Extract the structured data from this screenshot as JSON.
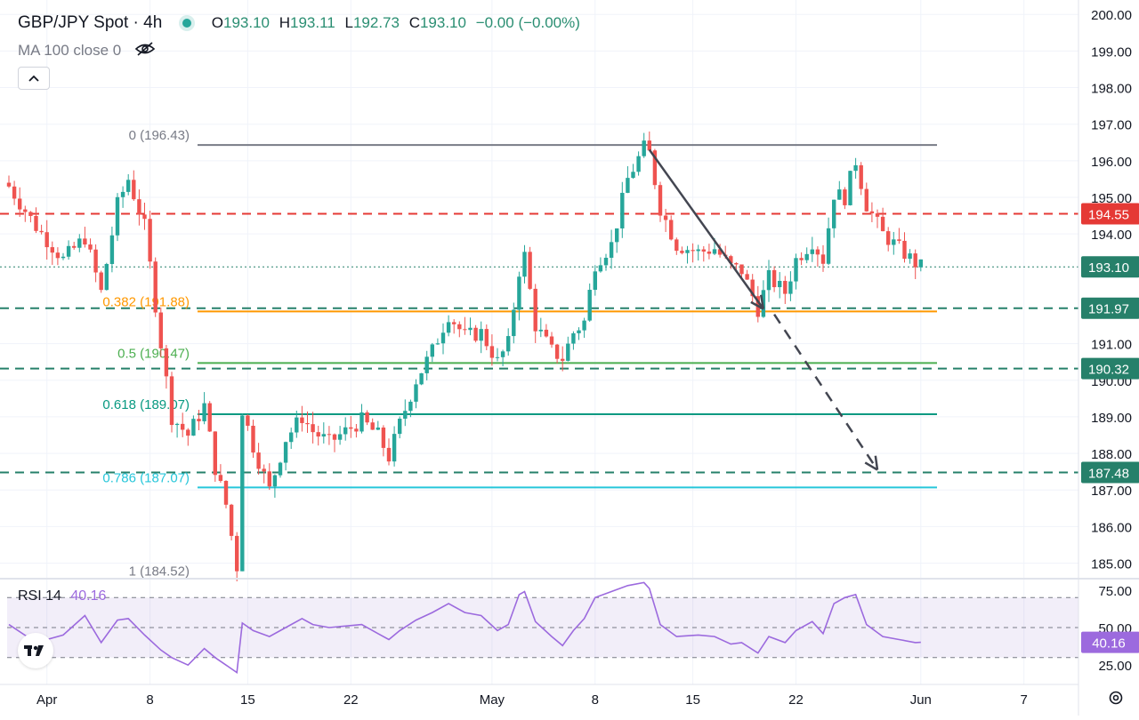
{
  "header": {
    "symbol": "GBP/JPY Spot · 4h",
    "open_label": "O",
    "open": "193.10",
    "high_label": "H",
    "high": "193.11",
    "low_label": "L",
    "low": "192.73",
    "close_label": "C",
    "close": "193.10",
    "change": "−0.00 (−0.00%)",
    "ma_label": "MA 100 close 0",
    "rsi_label": "RSI 14",
    "rsi_value": "40.16"
  },
  "icons": [
    "status-dot-icon",
    "eye-off-icon",
    "chevron-up-icon",
    "tradingview-logo-icon",
    "gear-icon"
  ],
  "colors": {
    "up": "#26a69a",
    "down": "#ef5350",
    "fib_0": "#787b86",
    "fib_382": "#ff9800",
    "fib_5": "#4caf50",
    "fib_618": "#089981",
    "fib_786": "#26c6da",
    "resistance": "#e53935",
    "support": "#26806a",
    "rsi": "#9c6ade"
  },
  "chart_data": {
    "type": "candlestick",
    "title": "GBP/JPY Spot · 4h",
    "ylim": [
      184.6,
      200.2
    ],
    "y_ticks": [
      "200.00",
      "199.00",
      "198.00",
      "197.00",
      "196.00",
      "195.00",
      "194.00",
      "191.00",
      "190.00",
      "189.00",
      "188.00",
      "187.00",
      "186.00",
      "185.00"
    ],
    "x_ticks": [
      "Apr",
      "8",
      "15",
      "22",
      "May",
      "8",
      "15",
      "22",
      "Jun",
      "7"
    ],
    "current_price": "193.10",
    "price_tags": [
      {
        "value": 194.55,
        "label": "194.55",
        "kind": "resistance"
      },
      {
        "value": 193.1,
        "label": "193.10",
        "kind": "current"
      },
      {
        "value": 191.97,
        "label": "191.97",
        "kind": "support"
      },
      {
        "value": 190.32,
        "label": "190.32",
        "kind": "support"
      },
      {
        "value": 187.48,
        "label": "187.48",
        "kind": "support"
      }
    ],
    "horizontal_levels": [
      {
        "value": 194.55,
        "style": "dashed",
        "kind": "resistance"
      },
      {
        "value": 191.97,
        "style": "dashed",
        "kind": "support"
      },
      {
        "value": 190.32,
        "style": "dashed",
        "kind": "support"
      },
      {
        "value": 187.48,
        "style": "dashed",
        "kind": "support"
      }
    ],
    "fibonacci": {
      "levels": [
        {
          "ratio": "0",
          "price": 196.43,
          "label": "0 (196.43)",
          "color_key": "fib_0"
        },
        {
          "ratio": "0.382",
          "price": 191.88,
          "label": "0.382 (191.88)",
          "color_key": "fib_382"
        },
        {
          "ratio": "0.5",
          "price": 190.47,
          "label": "0.5 (190.47)",
          "color_key": "fib_5"
        },
        {
          "ratio": "0.618",
          "price": 189.07,
          "label": "0.618 (189.07)",
          "color_key": "fib_618"
        },
        {
          "ratio": "0.786",
          "price": 187.07,
          "label": "0.786 (187.07)",
          "color_key": "fib_786"
        },
        {
          "ratio": "1",
          "price": 184.52,
          "label": "1 (184.52)",
          "color_key": "fib_0"
        }
      ]
    },
    "price_path": [
      [
        0,
        195.3
      ],
      [
        5,
        194.2
      ],
      [
        10,
        193.3
      ],
      [
        14,
        193.9
      ],
      [
        17,
        192.4
      ],
      [
        20,
        194.8
      ],
      [
        22,
        195.5
      ],
      [
        25,
        194.2
      ],
      [
        28,
        191.0
      ],
      [
        30,
        189.0
      ],
      [
        33,
        188.5
      ],
      [
        36,
        189.3
      ],
      [
        38,
        187.6
      ],
      [
        40,
        186.6
      ],
      [
        42,
        184.9
      ],
      [
        43,
        189.2
      ],
      [
        45,
        188.2
      ],
      [
        48,
        187.0
      ],
      [
        51,
        188.4
      ],
      [
        54,
        189.0
      ],
      [
        56,
        188.6
      ],
      [
        59,
        188.3
      ],
      [
        62,
        188.6
      ],
      [
        65,
        188.9
      ],
      [
        68,
        188.5
      ],
      [
        70,
        187.9
      ],
      [
        72,
        188.8
      ],
      [
        75,
        190.0
      ],
      [
        78,
        190.8
      ],
      [
        81,
        191.8
      ],
      [
        84,
        191.2
      ],
      [
        87,
        191.3
      ],
      [
        90,
        190.5
      ],
      [
        92,
        191.0
      ],
      [
        94,
        193.0
      ],
      [
        95,
        193.4
      ],
      [
        97,
        191.5
      ],
      [
        100,
        190.8
      ],
      [
        102,
        190.6
      ],
      [
        104,
        191.3
      ],
      [
        106,
        191.6
      ],
      [
        108,
        193.2
      ],
      [
        111,
        193.7
      ],
      [
        114,
        195.5
      ],
      [
        117,
        196.35
      ],
      [
        118,
        196.2
      ],
      [
        120,
        194.7
      ],
      [
        123,
        193.7
      ],
      [
        127,
        193.5
      ],
      [
        130,
        193.6
      ],
      [
        133,
        193.1
      ],
      [
        135,
        193.0
      ],
      [
        138,
        191.95
      ],
      [
        140,
        192.8
      ],
      [
        143,
        192.4
      ],
      [
        145,
        193.3
      ],
      [
        148,
        193.8
      ],
      [
        150,
        193.3
      ],
      [
        152,
        195.1
      ],
      [
        154,
        195.0
      ],
      [
        156,
        196.0
      ],
      [
        158,
        194.8
      ],
      [
        161,
        194.0
      ],
      [
        164,
        193.6
      ],
      [
        167,
        193.2
      ],
      [
        168,
        193.1
      ]
    ],
    "arrows": [
      {
        "from": [
          118,
          196.3
        ],
        "to": [
          139,
          191.95
        ],
        "style": "solid"
      },
      {
        "from": [
          141,
          191.8
        ],
        "to": [
          160,
          187.55
        ],
        "style": "dashed"
      }
    ],
    "rsi": {
      "period": 14,
      "value": 40.16,
      "value_label": "40.16",
      "ylim": [
        18,
        82
      ],
      "y_ticks": [
        "75.00",
        "50.00",
        "25.00"
      ],
      "overbought": 70,
      "middle": 50,
      "oversold": 30,
      "path": [
        [
          0,
          52
        ],
        [
          5,
          40
        ],
        [
          10,
          45
        ],
        [
          14,
          58
        ],
        [
          17,
          40
        ],
        [
          20,
          55
        ],
        [
          22,
          56
        ],
        [
          25,
          45
        ],
        [
          28,
          35
        ],
        [
          30,
          30
        ],
        [
          33,
          25
        ],
        [
          36,
          36
        ],
        [
          38,
          30
        ],
        [
          40,
          25
        ],
        [
          42,
          20
        ],
        [
          43,
          53
        ],
        [
          45,
          48
        ],
        [
          48,
          44
        ],
        [
          51,
          50
        ],
        [
          54,
          56
        ],
        [
          56,
          52
        ],
        [
          59,
          50
        ],
        [
          62,
          51
        ],
        [
          65,
          52
        ],
        [
          68,
          46
        ],
        [
          70,
          42
        ],
        [
          72,
          48
        ],
        [
          75,
          55
        ],
        [
          78,
          60
        ],
        [
          81,
          66
        ],
        [
          84,
          60
        ],
        [
          87,
          58
        ],
        [
          90,
          48
        ],
        [
          92,
          52
        ],
        [
          94,
          72
        ],
        [
          95,
          74
        ],
        [
          97,
          54
        ],
        [
          100,
          44
        ],
        [
          102,
          38
        ],
        [
          104,
          48
        ],
        [
          106,
          56
        ],
        [
          108,
          70
        ],
        [
          111,
          74
        ],
        [
          114,
          78
        ],
        [
          117,
          80
        ],
        [
          118,
          76
        ],
        [
          120,
          52
        ],
        [
          123,
          44
        ],
        [
          127,
          45
        ],
        [
          130,
          44
        ],
        [
          133,
          39
        ],
        [
          135,
          40
        ],
        [
          138,
          33
        ],
        [
          140,
          44
        ],
        [
          143,
          40
        ],
        [
          145,
          48
        ],
        [
          148,
          54
        ],
        [
          150,
          46
        ],
        [
          152,
          66
        ],
        [
          154,
          70
        ],
        [
          156,
          72
        ],
        [
          158,
          52
        ],
        [
          161,
          44
        ],
        [
          164,
          42
        ],
        [
          167,
          40
        ],
        [
          168,
          40.16
        ]
      ]
    }
  }
}
